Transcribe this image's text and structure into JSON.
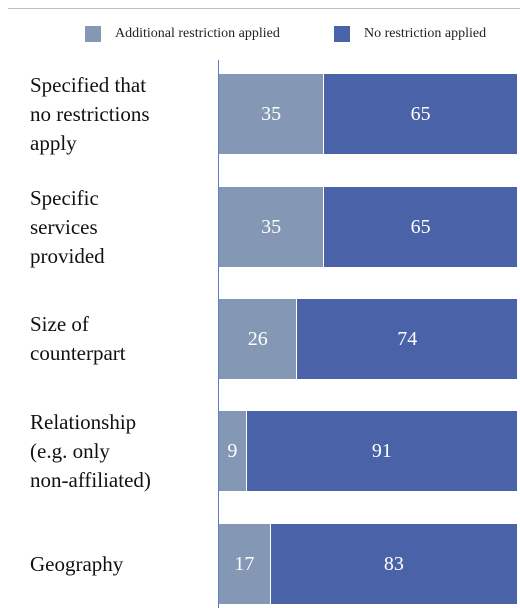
{
  "chart_data": {
    "type": "bar",
    "orientation": "horizontal",
    "stacked": true,
    "categories": [
      "Specified that\nno restrictions\napply",
      "Specific\nservices\nprovided",
      "Size of\ncounterpart",
      "Relationship\n(e.g. only\nnon-affiliated)",
      "Geography"
    ],
    "series": [
      {
        "name": "Additional restriction applied",
        "values": [
          35,
          35,
          26,
          9,
          17
        ],
        "color": "#8497b4"
      },
      {
        "name": "No restriction applied",
        "values": [
          65,
          65,
          74,
          91,
          83
        ],
        "color": "#4a62a8"
      }
    ],
    "xlim": [
      0,
      100
    ],
    "grid": false,
    "legend_position": "top"
  }
}
